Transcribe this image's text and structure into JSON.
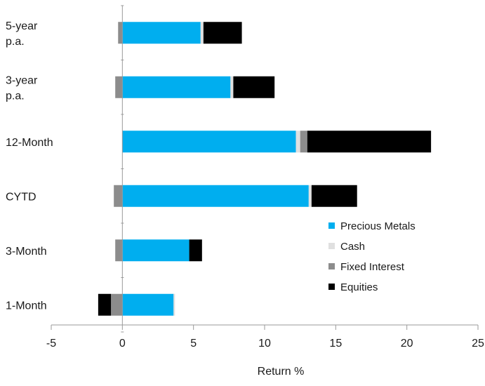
{
  "chart_data": {
    "type": "bar",
    "orientation": "horizontal",
    "stacked": true,
    "title": "",
    "xlabel": "Return %",
    "ylabel": "",
    "xlim": [
      -5,
      25
    ],
    "xticks": [
      "-5",
      "0",
      "5",
      "10",
      "15",
      "20",
      "25"
    ],
    "grid": false,
    "legend_position": "bottom-right",
    "categories": [
      [
        "5-year",
        "p.a."
      ],
      [
        "3-year",
        "p.a."
      ],
      [
        "12-Month"
      ],
      [
        "CYTD"
      ],
      [
        "3-Month"
      ],
      [
        "1-Month"
      ]
    ],
    "series": [
      {
        "name": "Precious Metals",
        "color": "#00aeef",
        "values": [
          5.5,
          7.6,
          12.2,
          13.1,
          4.7,
          3.6
        ]
      },
      {
        "name": "Cash",
        "color": "#e0e0e0",
        "values": [
          0.2,
          0.2,
          0.3,
          0.2,
          0.0,
          0.1
        ]
      },
      {
        "name": "Fixed Interest",
        "color": "#8c8c8c",
        "values": [
          -0.3,
          -0.5,
          0.5,
          -0.6,
          -0.5,
          -0.8
        ]
      },
      {
        "name": "Equities",
        "color": "#000000",
        "values": [
          2.7,
          2.9,
          8.7,
          3.2,
          0.9,
          -0.9
        ]
      }
    ]
  }
}
